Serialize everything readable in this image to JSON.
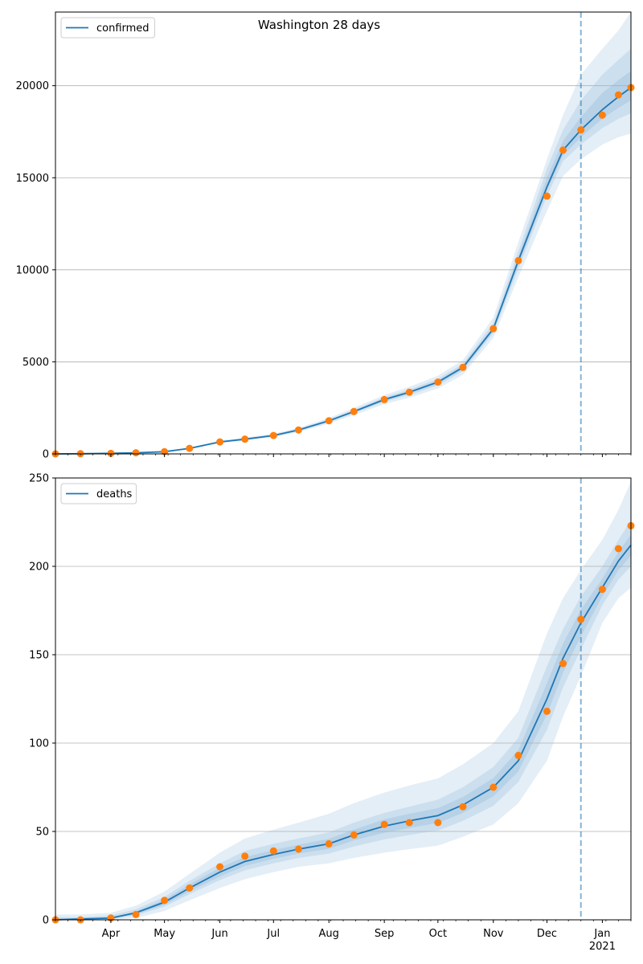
{
  "figure_title": "Washington 28 days",
  "colors": {
    "model_line": "#1f77b4",
    "observed_points": "#ff7f0e",
    "band": "#1f77b4",
    "vline": "#1f77b4",
    "grid": "#b0b0b0"
  },
  "x_axis": {
    "start": "2020-03-01",
    "end": "2021-01-17",
    "ticks": [
      {
        "date": "2020-04-01",
        "label": "Apr"
      },
      {
        "date": "2020-05-01",
        "label": "May"
      },
      {
        "date": "2020-06-01",
        "label": "Jun"
      },
      {
        "date": "2020-07-01",
        "label": "Jul"
      },
      {
        "date": "2020-08-01",
        "label": "Aug"
      },
      {
        "date": "2020-09-01",
        "label": "Sep"
      },
      {
        "date": "2020-10-01",
        "label": "Oct"
      },
      {
        "date": "2020-11-01",
        "label": "Nov"
      },
      {
        "date": "2020-12-01",
        "label": "Dec"
      },
      {
        "date": "2021-01-01",
        "label": "Jan",
        "sublabel": "2021"
      }
    ],
    "forecast_start": "2020-12-20"
  },
  "chart_data": [
    {
      "type": "line",
      "panel": "top",
      "legend": "confirmed",
      "legend_position": "top-left",
      "grid": "horizontal",
      "ylim": [
        0,
        24000
      ],
      "yticks": [
        0,
        5000,
        10000,
        15000,
        20000
      ],
      "series": [
        {
          "name": "confirmed",
          "x": [
            "2020-03-01",
            "2020-03-15",
            "2020-04-01",
            "2020-04-15",
            "2020-05-01",
            "2020-05-15",
            "2020-06-01",
            "2020-06-15",
            "2020-07-01",
            "2020-07-15",
            "2020-08-01",
            "2020-08-15",
            "2020-09-01",
            "2020-09-15",
            "2020-10-01",
            "2020-10-15",
            "2020-11-01",
            "2020-11-15",
            "2020-12-01",
            "2020-12-10",
            "2020-12-20",
            "2021-01-01",
            "2021-01-10",
            "2021-01-17"
          ],
          "y": [
            0,
            10,
            30,
            60,
            120,
            300,
            650,
            800,
            1000,
            1300,
            1800,
            2300,
            2950,
            3350,
            3900,
            4700,
            6800,
            10500,
            14500,
            16500,
            17600,
            18700,
            19400,
            19900
          ]
        }
      ],
      "observed": {
        "x": [
          "2020-03-01",
          "2020-03-15",
          "2020-04-01",
          "2020-04-15",
          "2020-05-01",
          "2020-05-15",
          "2020-06-01",
          "2020-06-15",
          "2020-07-01",
          "2020-07-15",
          "2020-08-01",
          "2020-08-15",
          "2020-09-01",
          "2020-09-15",
          "2020-10-01",
          "2020-10-15",
          "2020-11-01",
          "2020-11-15",
          "2020-12-01",
          "2020-12-10",
          "2020-12-20",
          "2021-01-01",
          "2021-01-10",
          "2021-01-17"
        ],
        "y": [
          0,
          10,
          30,
          60,
          120,
          300,
          650,
          800,
          1000,
          1300,
          1800,
          2300,
          2950,
          3350,
          3900,
          4700,
          6800,
          10500,
          14000,
          16500,
          17600,
          18400,
          19500,
          19900
        ]
      },
      "bands": [
        {
          "lower": [
            0,
            8,
            25,
            50,
            100,
            260,
            580,
            720,
            900,
            1180,
            1650,
            2100,
            2700,
            3050,
            3550,
            4300,
            6300,
            9600,
            13200,
            15100,
            16000,
            16800,
            17200,
            17400
          ],
          "upper": [
            0,
            12,
            35,
            70,
            140,
            340,
            720,
            880,
            1100,
            1420,
            1950,
            2500,
            3200,
            3650,
            4250,
            5100,
            7400,
            11500,
            16000,
            18400,
            20600,
            22000,
            23000,
            24000
          ]
        },
        {
          "lower": [
            0,
            9,
            27,
            55,
            110,
            280,
            610,
            760,
            950,
            1240,
            1720,
            2200,
            2820,
            3200,
            3720,
            4500,
            6550,
            10050,
            14000,
            15900,
            16800,
            17700,
            18200,
            18500
          ],
          "upper": [
            0,
            11,
            33,
            65,
            130,
            320,
            690,
            840,
            1050,
            1360,
            1880,
            2400,
            3080,
            3500,
            4080,
            4900,
            7100,
            11000,
            15500,
            17600,
            19200,
            20600,
            21400,
            22000
          ]
        },
        {
          "lower": [
            0,
            9.5,
            28.5,
            57.5,
            115,
            290,
            630,
            780,
            975,
            1270,
            1760,
            2250,
            2890,
            3280,
            3810,
            4600,
            6680,
            10280,
            14300,
            16200,
            17200,
            18200,
            18800,
            19200
          ],
          "upper": [
            0,
            10.5,
            31.5,
            62.5,
            125,
            310,
            670,
            820,
            1025,
            1330,
            1840,
            2350,
            3010,
            3420,
            3990,
            4800,
            6900,
            10700,
            15000,
            17000,
            18300,
            19600,
            20300,
            20800
          ]
        }
      ]
    },
    {
      "type": "line",
      "panel": "bottom",
      "legend": "deaths",
      "legend_position": "top-left",
      "grid": "horizontal",
      "ylim": [
        0,
        250
      ],
      "yticks": [
        0,
        50,
        100,
        150,
        200,
        250
      ],
      "series": [
        {
          "name": "deaths",
          "x": [
            "2020-03-01",
            "2020-03-15",
            "2020-04-01",
            "2020-04-15",
            "2020-05-01",
            "2020-05-15",
            "2020-06-01",
            "2020-06-15",
            "2020-07-01",
            "2020-07-15",
            "2020-08-01",
            "2020-08-15",
            "2020-09-01",
            "2020-09-15",
            "2020-10-01",
            "2020-10-15",
            "2020-11-01",
            "2020-11-15",
            "2020-12-01",
            "2020-12-10",
            "2020-12-20",
            "2021-01-01",
            "2021-01-10",
            "2021-01-17"
          ],
          "y": [
            0,
            0.5,
            1,
            4,
            10,
            18,
            27,
            33,
            37,
            40,
            43,
            48,
            53,
            56,
            59,
            65,
            75,
            90,
            125,
            148,
            168,
            188,
            203,
            212
          ]
        }
      ],
      "observed": {
        "x": [
          "2020-03-01",
          "2020-03-15",
          "2020-04-01",
          "2020-04-15",
          "2020-05-01",
          "2020-05-15",
          "2020-06-01",
          "2020-06-15",
          "2020-07-01",
          "2020-07-15",
          "2020-08-01",
          "2020-08-15",
          "2020-09-01",
          "2020-09-15",
          "2020-10-01",
          "2020-10-15",
          "2020-11-01",
          "2020-11-15",
          "2020-12-01",
          "2020-12-10",
          "2020-12-20",
          "2021-01-01",
          "2021-01-10",
          "2021-01-17"
        ],
        "y": [
          0,
          0,
          1,
          3,
          11,
          18,
          30,
          36,
          39,
          40,
          43,
          48,
          54,
          55,
          55,
          64,
          75,
          93,
          118,
          145,
          170,
          187,
          210,
          223
        ]
      },
      "bands": [
        {
          "lower": [
            0,
            0,
            0,
            1,
            5,
            11,
            18,
            23,
            27,
            30,
            32,
            35,
            38,
            40,
            42,
            47,
            54,
            66,
            90,
            115,
            138,
            168,
            182,
            188
          ],
          "upper": [
            3,
            3,
            4,
            8,
            16,
            26,
            38,
            46,
            51,
            55,
            60,
            66,
            72,
            76,
            80,
            88,
            100,
            118,
            162,
            182,
            198,
            215,
            232,
            248
          ]
        },
        {
          "lower": [
            0,
            0,
            0.5,
            2.5,
            7.5,
            14.5,
            22.5,
            28,
            32,
            35,
            37.5,
            41.5,
            45.5,
            48,
            50.5,
            56,
            64.5,
            78,
            107.5,
            131.5,
            153,
            178,
            192.5,
            200
          ],
          "upper": [
            1.5,
            1.5,
            2.5,
            6,
            13,
            22,
            32,
            39,
            43,
            46,
            49.5,
            55,
            60.5,
            64,
            68,
            75,
            86.5,
            103,
            143.5,
            164.5,
            183,
            200,
            215,
            226
          ]
        },
        {
          "lower": [
            0,
            0.2,
            0.7,
            3.2,
            8.5,
            16,
            24.5,
            30.5,
            34.5,
            37.5,
            40.2,
            45,
            49.2,
            52,
            54.8,
            60.5,
            69.8,
            84,
            116.2,
            139.8,
            160.5,
            183,
            197.8,
            206
          ],
          "upper": [
            0.8,
            0.8,
            1.3,
            4.8,
            11.5,
            20,
            29.5,
            35.5,
            39.5,
            42.5,
            45.8,
            51,
            56.8,
            60,
            63.2,
            69.5,
            80.2,
            96,
            133.8,
            156.2,
            175.5,
            193,
            208.2,
            218
          ]
        }
      ]
    }
  ]
}
